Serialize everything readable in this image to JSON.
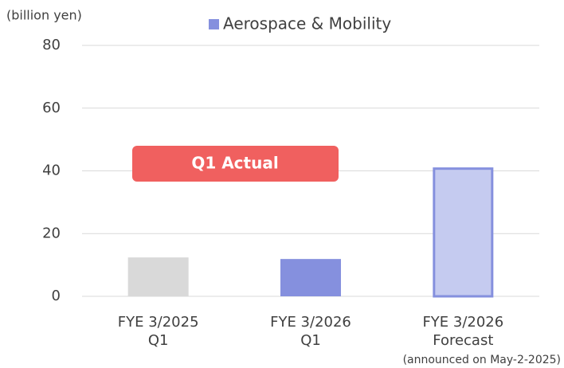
{
  "chart_data": {
    "type": "bar",
    "y_axis_label": "(billion yen)",
    "categories": [
      [
        "FYE 3/2025",
        "Q1"
      ],
      [
        "FYE 3/2026",
        "Q1"
      ],
      [
        "FYE 3/2026",
        "Forecast"
      ]
    ],
    "series": [
      {
        "name": "Aerospace & Mobility",
        "color": "#8590de",
        "values": [
          12.4,
          11.9,
          41.1
        ]
      }
    ],
    "bar_colors": [
      "#d9d9d9",
      "#8590de",
      "#c5cbf0"
    ],
    "bar_outline": [
      null,
      null,
      "#8590de"
    ],
    "annotations": [
      "Q1 Actual",
      "(announced on May-2-2025)"
    ],
    "annotation_color": "#f0605f",
    "ylim": [
      0,
      80
    ],
    "yticks": [
      0,
      20,
      40,
      60,
      80
    ],
    "grid": true,
    "legend": "top"
  }
}
